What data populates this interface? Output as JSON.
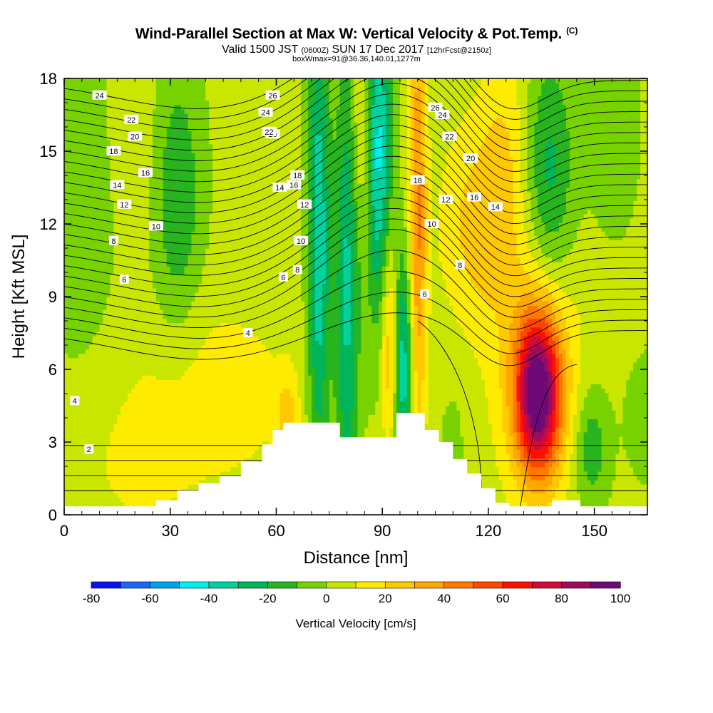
{
  "title": {
    "main": "Wind-Parallel Section at Max W: Vertical Velocity & Pot.Temp.",
    "main_mark": "(C)",
    "valid_prefix": "Valid 1500 JST",
    "valid_zulu": "(0600Z)",
    "valid_date": "SUN 17 Dec 2017",
    "valid_fcst": "[12hrFcst@2150z]",
    "box": "boxWmax=91@36.36,140.01,1277m"
  },
  "chart_data": {
    "type": "heatmap",
    "xlabel": "Distance [nm]",
    "ylabel": "Height [Kft MSL]",
    "xlim": [
      0,
      165
    ],
    "ylim": [
      0,
      18
    ],
    "xticks": [
      "0",
      "30",
      "60",
      "90",
      "120",
      "150"
    ],
    "yticks": [
      "0",
      "3",
      "6",
      "9",
      "12",
      "15",
      "18"
    ],
    "colorbar": {
      "label": "Vertical Velocity [cm/s]",
      "tick_labels": [
        "-80",
        "-60",
        "-40",
        "-20",
        "0",
        "20",
        "40",
        "60",
        "80",
        "100"
      ],
      "levels": [
        -80,
        -70,
        -60,
        -50,
        -40,
        -30,
        -20,
        -10,
        0,
        10,
        20,
        30,
        40,
        50,
        60,
        70,
        80,
        90,
        100
      ],
      "colors": [
        "#0a14f0",
        "#1e64f5",
        "#00a0f0",
        "#00f0f0",
        "#00d2a0",
        "#00b45a",
        "#28b41e",
        "#78d200",
        "#c8e600",
        "#ffeb00",
        "#ffc800",
        "#ffa500",
        "#ff7800",
        "#ff4600",
        "#ff0f00",
        "#d20a3c",
        "#a00a5a",
        "#6e0a78"
      ]
    },
    "contours": {
      "field": "potential temperature (C)",
      "labels": [
        "2",
        "4",
        "4",
        "6",
        "6",
        "6",
        "8",
        "8",
        "8",
        "10",
        "10",
        "10",
        "12",
        "12",
        "12",
        "14",
        "14",
        "14",
        "16",
        "16",
        "16",
        "18",
        "18",
        "18",
        "20",
        "20",
        "20",
        "22",
        "22",
        "22",
        "24",
        "24",
        "24",
        "26",
        "26"
      ]
    },
    "terrain_profile": {
      "x": [
        0,
        10,
        20,
        26,
        29,
        32,
        35,
        38,
        41,
        44,
        47,
        50,
        53,
        56,
        59,
        62,
        66,
        70,
        74,
        78,
        82,
        86,
        90,
        94,
        98,
        102,
        106,
        110,
        114,
        118,
        122,
        126,
        130,
        134,
        138,
        142,
        146,
        150,
        155,
        165
      ],
      "y": [
        0,
        0,
        0,
        0.6,
        0.6,
        1.0,
        1.0,
        1.3,
        1.3,
        1.6,
        1.6,
        2.2,
        2.2,
        2.9,
        3.5,
        3.8,
        3.8,
        3.8,
        3.8,
        3.2,
        3.2,
        3.2,
        3.2,
        4.2,
        4.2,
        3.5,
        3.0,
        2.3,
        1.7,
        1.1,
        0.5,
        0.2,
        0,
        0,
        0.6,
        0.6,
        0,
        0,
        0,
        0
      ]
    }
  }
}
